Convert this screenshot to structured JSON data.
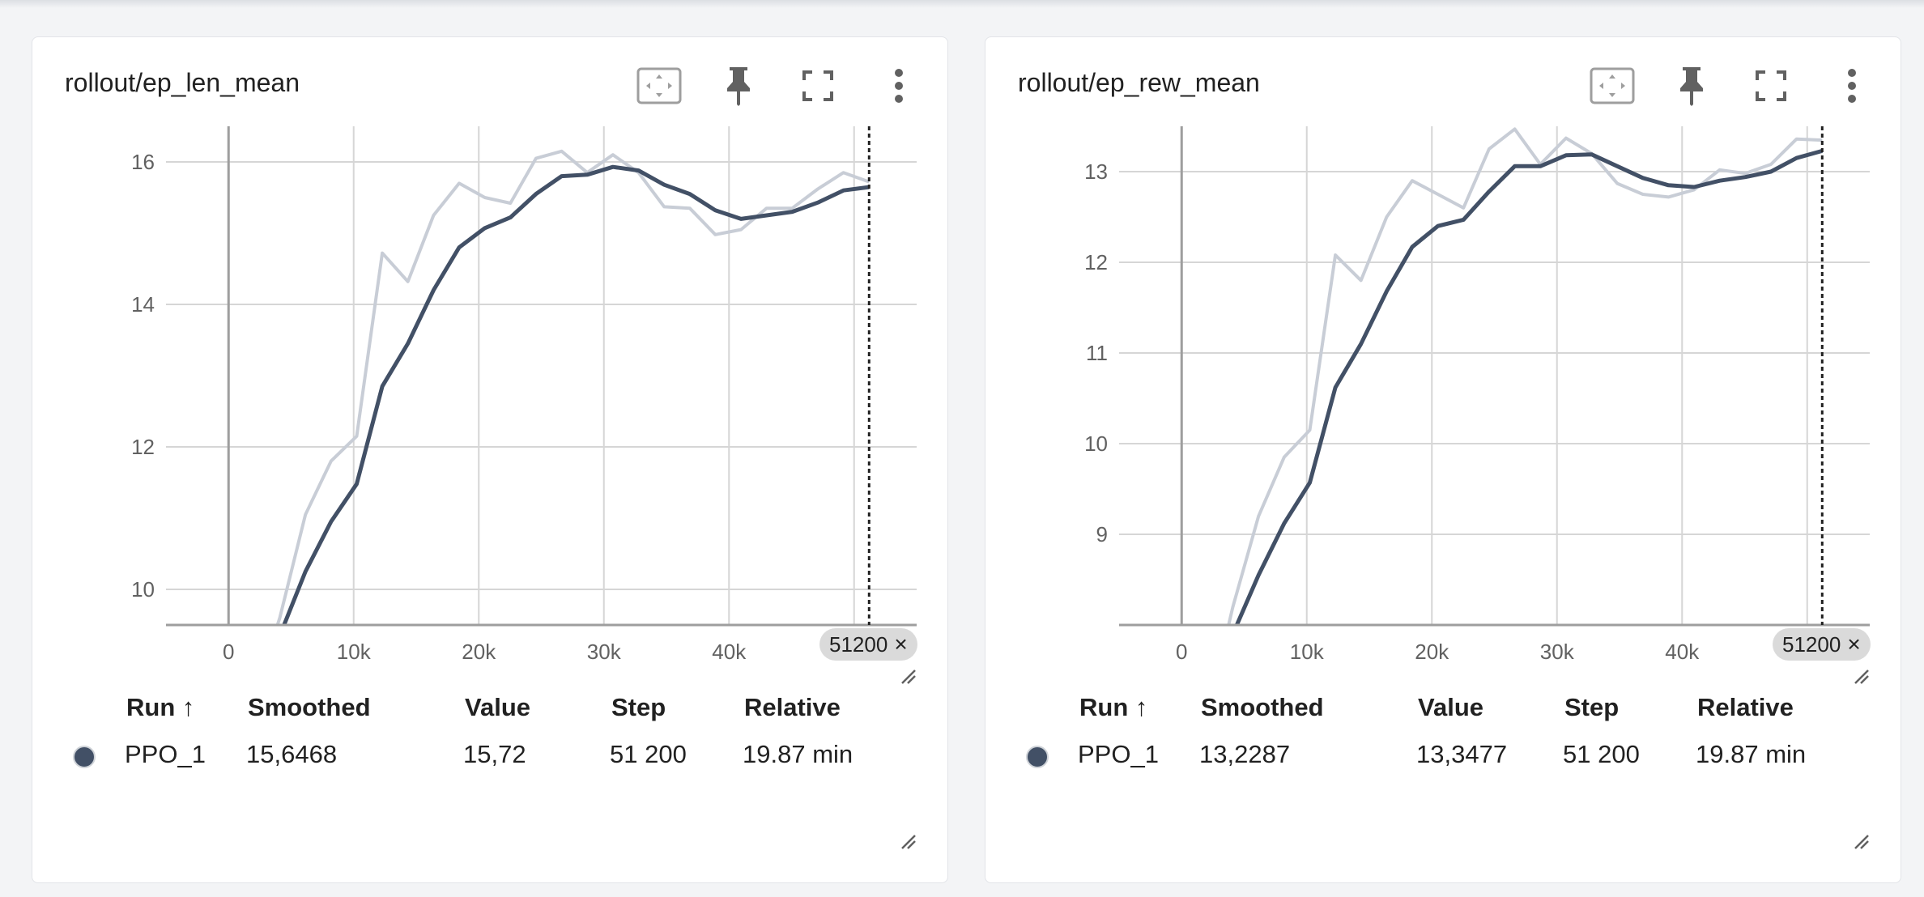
{
  "theme": {
    "smoothed_color": "#425066",
    "raw_color": "#c8cdd6",
    "grid_color": "#d6d6d6"
  },
  "icons": [
    "fit-domain-icon",
    "pin-icon",
    "fullscreen-icon",
    "more-vert-icon",
    "resize-icon"
  ],
  "cards": [
    {
      "title": "rollout/ep_len_mean",
      "step_chip": "51200",
      "chip_close": "×",
      "table_headers": {
        "run": "Run ↑",
        "smoothed": "Smoothed",
        "value": "Value",
        "step": "Step",
        "relative": "Relative"
      },
      "row": {
        "run": "PPO_1",
        "smoothed": "15,6468",
        "value": "15,72",
        "step": "51 200",
        "relative": "19.87 min",
        "color": "#425066"
      }
    },
    {
      "title": "rollout/ep_rew_mean",
      "step_chip": "51200",
      "chip_close": "×",
      "table_headers": {
        "run": "Run ↑",
        "smoothed": "Smoothed",
        "value": "Value",
        "step": "Step",
        "relative": "Relative"
      },
      "row": {
        "run": "PPO_1",
        "smoothed": "13,2287",
        "value": "13,3477",
        "step": "51 200",
        "relative": "19.87 min",
        "color": "#425066"
      }
    }
  ],
  "chart_data": [
    {
      "type": "line",
      "xlim": [
        -5000,
        55000
      ],
      "ylim": [
        9.5,
        16.5
      ],
      "x_ticks": [
        0,
        10000,
        20000,
        30000,
        40000,
        50000
      ],
      "x_tick_labels": [
        "0",
        "10k",
        "20k",
        "30k",
        "40k",
        "50k"
      ],
      "y_ticks": [
        10,
        12,
        14,
        16
      ],
      "y_tick_labels": [
        "10",
        "12",
        "14",
        "16"
      ],
      "cursor_x": 51200,
      "grid": true,
      "series": [
        {
          "role": "raw",
          "x": [
            2048,
            4096,
            6144,
            8192,
            10240,
            12288,
            14336,
            16384,
            18432,
            20480,
            22528,
            24576,
            26624,
            28672,
            30720,
            32768,
            34816,
            36864,
            38912,
            40960,
            43008,
            45056,
            47104,
            49152,
            51200
          ],
          "y": [
            8.5,
            9.6,
            11.05,
            11.8,
            12.15,
            14.72,
            14.32,
            15.25,
            15.7,
            15.5,
            15.42,
            16.05,
            16.15,
            15.85,
            16.1,
            15.85,
            15.37,
            15.35,
            14.98,
            15.05,
            15.35,
            15.35,
            15.62,
            15.85,
            15.72
          ]
        },
        {
          "role": "smoothed",
          "x": [
            2048,
            4096,
            6144,
            8192,
            10240,
            12288,
            14336,
            16384,
            18432,
            20480,
            22528,
            24576,
            26624,
            28672,
            30720,
            32768,
            34816,
            36864,
            38912,
            40960,
            43008,
            45056,
            47104,
            49152,
            51200
          ],
          "y": [
            8.5,
            9.35,
            10.25,
            10.95,
            11.48,
            12.85,
            13.45,
            14.2,
            14.8,
            15.07,
            15.22,
            15.55,
            15.8,
            15.82,
            15.93,
            15.88,
            15.68,
            15.55,
            15.32,
            15.2,
            15.25,
            15.3,
            15.43,
            15.6,
            15.6468
          ]
        }
      ]
    },
    {
      "type": "line",
      "xlim": [
        -5000,
        55000
      ],
      "ylim": [
        8.0,
        13.5
      ],
      "x_ticks": [
        0,
        10000,
        20000,
        30000,
        40000,
        50000
      ],
      "x_tick_labels": [
        "0",
        "10k",
        "20k",
        "30k",
        "40k",
        "50k"
      ],
      "y_ticks": [
        9,
        10,
        11,
        12,
        13
      ],
      "y_tick_labels": [
        "9",
        "10",
        "11",
        "12",
        "13"
      ],
      "cursor_x": 51200,
      "grid": true,
      "series": [
        {
          "role": "raw",
          "x": [
            2048,
            4096,
            6144,
            8192,
            10240,
            12288,
            14336,
            16384,
            18432,
            20480,
            22528,
            24576,
            26624,
            28672,
            30720,
            32768,
            34816,
            36864,
            38912,
            40960,
            43008,
            45056,
            47104,
            49152,
            51200
          ],
          "y": [
            7.0,
            8.2,
            9.2,
            9.85,
            10.15,
            12.08,
            11.8,
            12.5,
            12.9,
            12.75,
            12.6,
            13.25,
            13.47,
            13.08,
            13.37,
            13.2,
            12.87,
            12.75,
            12.72,
            12.8,
            13.02,
            12.98,
            13.08,
            13.36,
            13.3477
          ]
        },
        {
          "role": "smoothed",
          "x": [
            2048,
            4096,
            6144,
            8192,
            10240,
            12288,
            14336,
            16384,
            18432,
            20480,
            22528,
            24576,
            26624,
            28672,
            30720,
            32768,
            34816,
            36864,
            38912,
            40960,
            43008,
            45056,
            47104,
            49152,
            51200
          ],
          "y": [
            7.0,
            7.9,
            8.55,
            9.12,
            9.57,
            10.62,
            11.1,
            11.68,
            12.17,
            12.4,
            12.47,
            12.78,
            13.06,
            13.06,
            13.18,
            13.19,
            13.06,
            12.93,
            12.85,
            12.83,
            12.9,
            12.94,
            13.0,
            13.15,
            13.2287
          ]
        }
      ]
    }
  ]
}
